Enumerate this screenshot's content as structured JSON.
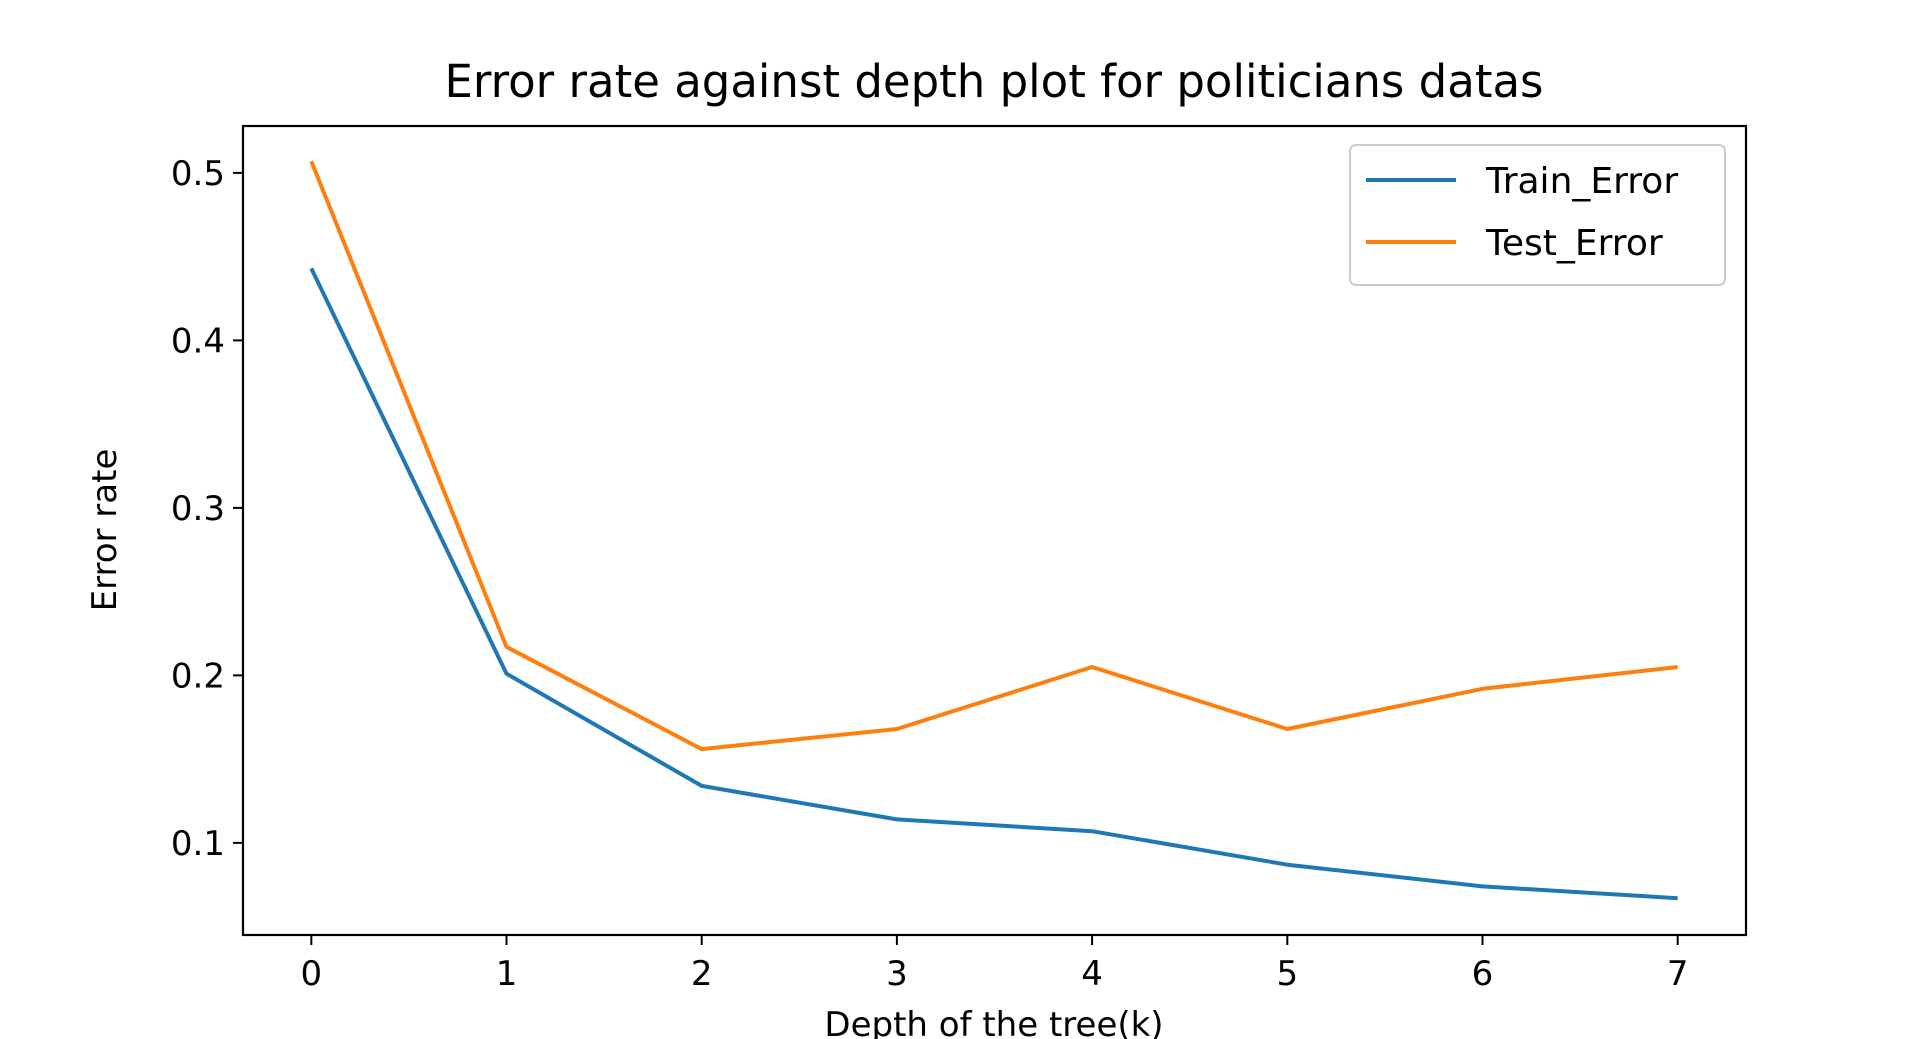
{
  "chart_data": {
    "type": "line",
    "title": "Error rate against depth plot for politicians datas",
    "xlabel": "Depth of the tree(k)",
    "ylabel": "Error rate",
    "x": [
      0,
      1,
      2,
      3,
      4,
      5,
      6,
      7
    ],
    "xticks": [
      "0",
      "1",
      "2",
      "3",
      "4",
      "5",
      "6",
      "7"
    ],
    "yticks": [
      "0.1",
      "0.2",
      "0.3",
      "0.4",
      "0.5"
    ],
    "ytick_values": [
      0.1,
      0.2,
      0.3,
      0.4,
      0.5
    ],
    "xlim": [
      -0.35,
      7.35
    ],
    "ylim": [
      0.045,
      0.528
    ],
    "grid": false,
    "legend_position": "top-right",
    "series": [
      {
        "name": "Train_Error",
        "color": "#1f77b4",
        "values": [
          0.443,
          0.201,
          0.134,
          0.114,
          0.107,
          0.087,
          0.074,
          0.067
        ]
      },
      {
        "name": "Test_Error",
        "color": "#ff7f0e",
        "values": [
          0.507,
          0.217,
          0.156,
          0.168,
          0.205,
          0.168,
          0.192,
          0.205
        ]
      }
    ]
  }
}
